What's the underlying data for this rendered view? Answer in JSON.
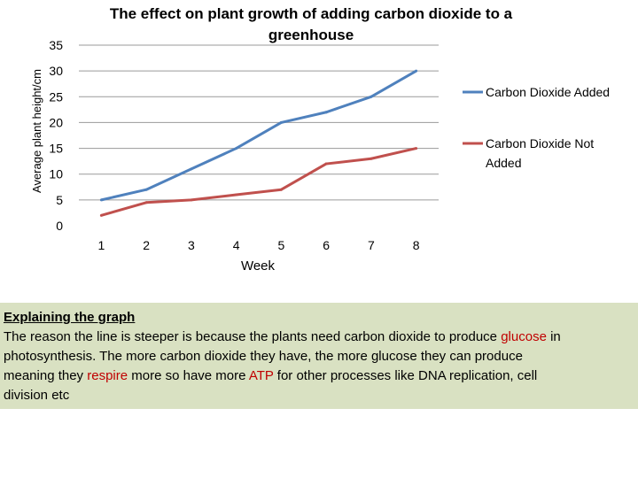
{
  "chart_data": {
    "type": "line",
    "title": "The effect on plant growth of adding carbon dioxide to a greenhouse",
    "title_lines": [
      "The effect on plant growth of adding carbon dioxide to a",
      "greenhouse"
    ],
    "xlabel": "Week",
    "ylabel": "Average plant height/cm",
    "categories": [
      "1",
      "2",
      "3",
      "4",
      "5",
      "6",
      "7",
      "8"
    ],
    "y_ticks": [
      0,
      5,
      10,
      15,
      20,
      25,
      30,
      35
    ],
    "ylim": [
      0,
      35
    ],
    "grid": "horizontal",
    "legend_position": "right",
    "series": [
      {
        "name": "Carbon Dioxide Added",
        "name_lines": [
          "Carbon Dioxide Added"
        ],
        "color": "#4f81bd",
        "values": [
          5,
          7,
          11,
          15,
          20,
          22,
          25,
          30
        ]
      },
      {
        "name": "Carbon Dioxide Not Added",
        "name_lines": [
          "Carbon Dioxide Not",
          "Added"
        ],
        "color": "#c0504d",
        "values": [
          2,
          4.5,
          5,
          6,
          7,
          12,
          13,
          15
        ]
      }
    ]
  },
  "explanation": {
    "heading": "Explaining the graph",
    "lines": [
      [
        {
          "t": "The reason the line is steeper is because the plants need carbon dioxide to produce "
        },
        {
          "t": "glucose",
          "hl": true
        },
        {
          "t": " in"
        }
      ],
      [
        {
          "t": "photosynthesis. The more carbon dioxide they have, the more glucose they can produce"
        }
      ],
      [
        {
          "t": "meaning they "
        },
        {
          "t": "respire",
          "hl": true
        },
        {
          "t": " more so have more "
        },
        {
          "t": "ATP",
          "hl": true
        },
        {
          "t": " for other processes like DNA replication, cell"
        }
      ],
      [
        {
          "t": "division etc"
        }
      ]
    ],
    "highlight_color": "#c00000",
    "background": "#d9e1c2"
  }
}
